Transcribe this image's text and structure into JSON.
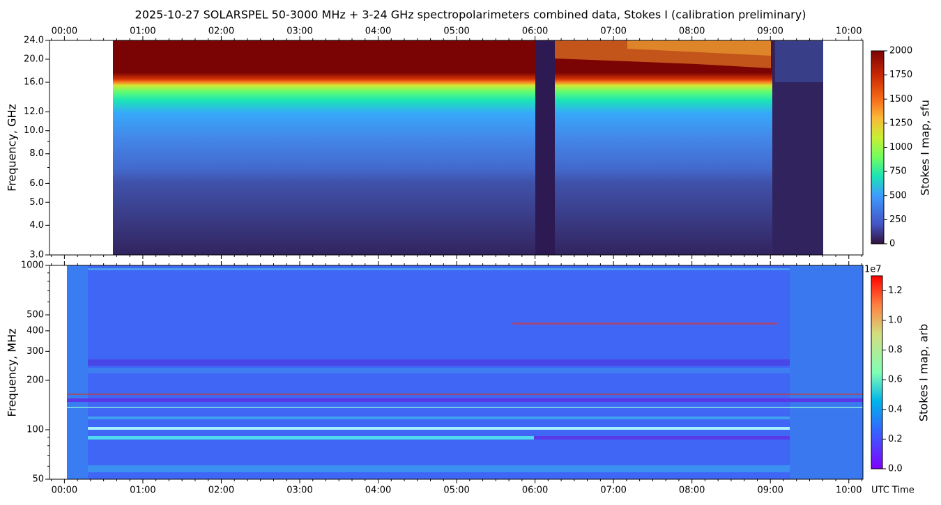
{
  "chart_data": [
    {
      "type": "heatmap",
      "title": "2025-10-27  SOLARSPEL  50-3000 MHz  +  3-24 GHz  spectropolarimeters combined data,  Stokes I  (calibration preliminary)",
      "ylabel": "Frequency, GHz",
      "yscale": "log",
      "ylim": [
        3,
        24
      ],
      "yticks": [
        {
          "value": 3,
          "label": "3.0"
        },
        {
          "value": 4,
          "label": "4.0"
        },
        {
          "value": 5,
          "label": "5.0"
        },
        {
          "value": 6,
          "label": "6.0"
        },
        {
          "value": 8,
          "label": "8.0"
        },
        {
          "value": 10,
          "label": "10.0"
        },
        {
          "value": 12,
          "label": "12.0"
        },
        {
          "value": 16,
          "label": "16.0"
        },
        {
          "value": 20,
          "label": "20.0"
        },
        {
          "value": 24,
          "label": "24.0"
        }
      ],
      "xlim": [
        -0.19,
        10.18
      ],
      "xticks": [
        {
          "value": 0,
          "label": "00:00"
        },
        {
          "value": 1,
          "label": "01:00"
        },
        {
          "value": 2,
          "label": "02:00"
        },
        {
          "value": 3,
          "label": "03:00"
        },
        {
          "value": 4,
          "label": "04:00"
        },
        {
          "value": 5,
          "label": "05:00"
        },
        {
          "value": 6,
          "label": "06:00"
        },
        {
          "value": 7,
          "label": "07:00"
        },
        {
          "value": 8,
          "label": "08:00"
        },
        {
          "value": 9,
          "label": "09:00"
        },
        {
          "value": 10,
          "label": "10:00"
        }
      ],
      "colorbar": {
        "label": "Stokes I map, sfu",
        "lim": [
          0,
          2000
        ],
        "ticks": [
          0,
          250,
          500,
          750,
          1000,
          1250,
          1500,
          1750,
          2000
        ]
      }
    },
    {
      "type": "heatmap",
      "ylabel": "Frequency, MHz",
      "xlabel": "UTC Time",
      "yscale": "log",
      "ylim": [
        50,
        1000
      ],
      "yticks": [
        50,
        100,
        200,
        300,
        400,
        500,
        1000
      ],
      "xlim": [
        -0.19,
        10.18
      ],
      "xticks": [
        {
          "value": 0,
          "label": "00:00"
        },
        {
          "value": 1,
          "label": "01:00"
        },
        {
          "value": 2,
          "label": "02:00"
        },
        {
          "value": 3,
          "label": "03:00"
        },
        {
          "value": 4,
          "label": "04:00"
        },
        {
          "value": 5,
          "label": "05:00"
        },
        {
          "value": 6,
          "label": "06:00"
        },
        {
          "value": 7,
          "label": "07:00"
        },
        {
          "value": 8,
          "label": "08:00"
        },
        {
          "value": 9,
          "label": "09:00"
        },
        {
          "value": 10,
          "label": "10:00"
        }
      ],
      "colorbar": {
        "label": "Stokes I map, arb",
        "offset": "1e7",
        "lim": [
          0,
          1.3
        ],
        "ticks": [
          {
            "value": 0,
            "label": "0.0"
          },
          0.2,
          0.4,
          0.6,
          0.8,
          {
            "value": 1,
            "label": "1.0"
          },
          1.2
        ]
      }
    }
  ]
}
